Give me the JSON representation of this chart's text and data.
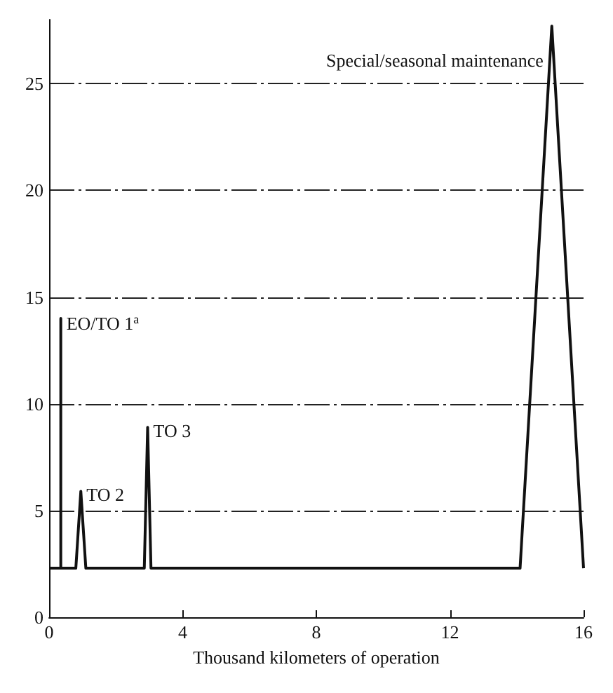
{
  "chart_data": {
    "type": "line",
    "xlabel": "Thousand kilometers of operation",
    "series": [
      {
        "color": "#111111",
        "x": [
          0,
          0.35,
          0.35,
          0.35,
          0.8,
          0.95,
          1.1,
          2.85,
          2.95,
          3.05,
          14.1,
          15.05,
          16
        ],
        "values": [
          2.3,
          2.3,
          14,
          2.3,
          2.3,
          5.9,
          2.3,
          2.3,
          8.9,
          2.3,
          2.3,
          27.7,
          2.3
        ]
      }
    ],
    "xlim": [
      0,
      16
    ],
    "xticks": [
      0,
      4,
      8,
      12,
      16
    ],
    "ylim": [
      0,
      28
    ],
    "yticks": [
      0,
      5,
      10,
      15,
      20,
      25
    ],
    "grid": "y",
    "line_style": "solid",
    "marker": "none",
    "annotations": [
      {
        "text": "EO/TO 1$^{a}$",
        "x": 0.35,
        "y": 14
      },
      {
        "text": "TO 2",
        "x": 0.95,
        "y": 5.9
      },
      {
        "text": "TO 3",
        "x": 2.95,
        "y": 8.9
      },
      {
        "text": "Special/seasonal maintenance",
        "x": 15.05,
        "y": 27.7
      }
    ]
  }
}
